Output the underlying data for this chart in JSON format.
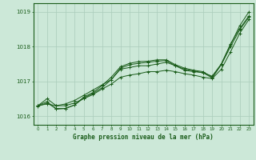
{
  "title": "Graphe pression niveau de la mer (hPa)",
  "background_color": "#cce8d8",
  "line_color": "#1a5c1a",
  "grid_color": "#aaccbb",
  "xlim": [
    -0.5,
    23.5
  ],
  "ylim": [
    1015.75,
    1019.25
  ],
  "yticks": [
    1016,
    1017,
    1018,
    1019
  ],
  "xticks": [
    0,
    1,
    2,
    3,
    4,
    5,
    6,
    7,
    8,
    9,
    10,
    11,
    12,
    13,
    14,
    15,
    16,
    17,
    18,
    19,
    20,
    21,
    22,
    23
  ],
  "series": [
    [
      1016.3,
      1016.5,
      1016.3,
      1016.35,
      1016.45,
      1016.6,
      1016.75,
      1016.9,
      1017.05,
      1017.35,
      1017.4,
      1017.45,
      1017.45,
      1017.5,
      1017.55,
      1017.45,
      1017.35,
      1017.3,
      1017.25,
      1017.15,
      1017.5,
      1018.05,
      1018.6,
      1019.0
    ],
    [
      1016.3,
      1016.35,
      1016.3,
      1016.3,
      1016.38,
      1016.5,
      1016.62,
      1016.78,
      1016.92,
      1017.12,
      1017.18,
      1017.22,
      1017.28,
      1017.28,
      1017.32,
      1017.28,
      1017.22,
      1017.18,
      1017.12,
      1017.08,
      1017.35,
      1017.85,
      1018.38,
      1018.78
    ],
    [
      1016.3,
      1016.42,
      1016.2,
      1016.22,
      1016.32,
      1016.55,
      1016.68,
      1016.88,
      1017.12,
      1017.42,
      1017.52,
      1017.57,
      1017.58,
      1017.62,
      1017.62,
      1017.48,
      1017.38,
      1017.32,
      1017.28,
      1017.12,
      1017.5,
      1018.08,
      1018.52,
      1018.88
    ],
    [
      1016.28,
      1016.38,
      1016.22,
      1016.22,
      1016.32,
      1016.52,
      1016.65,
      1016.82,
      1017.05,
      1017.38,
      1017.48,
      1017.52,
      1017.55,
      1017.58,
      1017.6,
      1017.45,
      1017.32,
      1017.28,
      1017.25,
      1017.1,
      1017.48,
      1018.0,
      1018.48,
      1018.85
    ]
  ]
}
